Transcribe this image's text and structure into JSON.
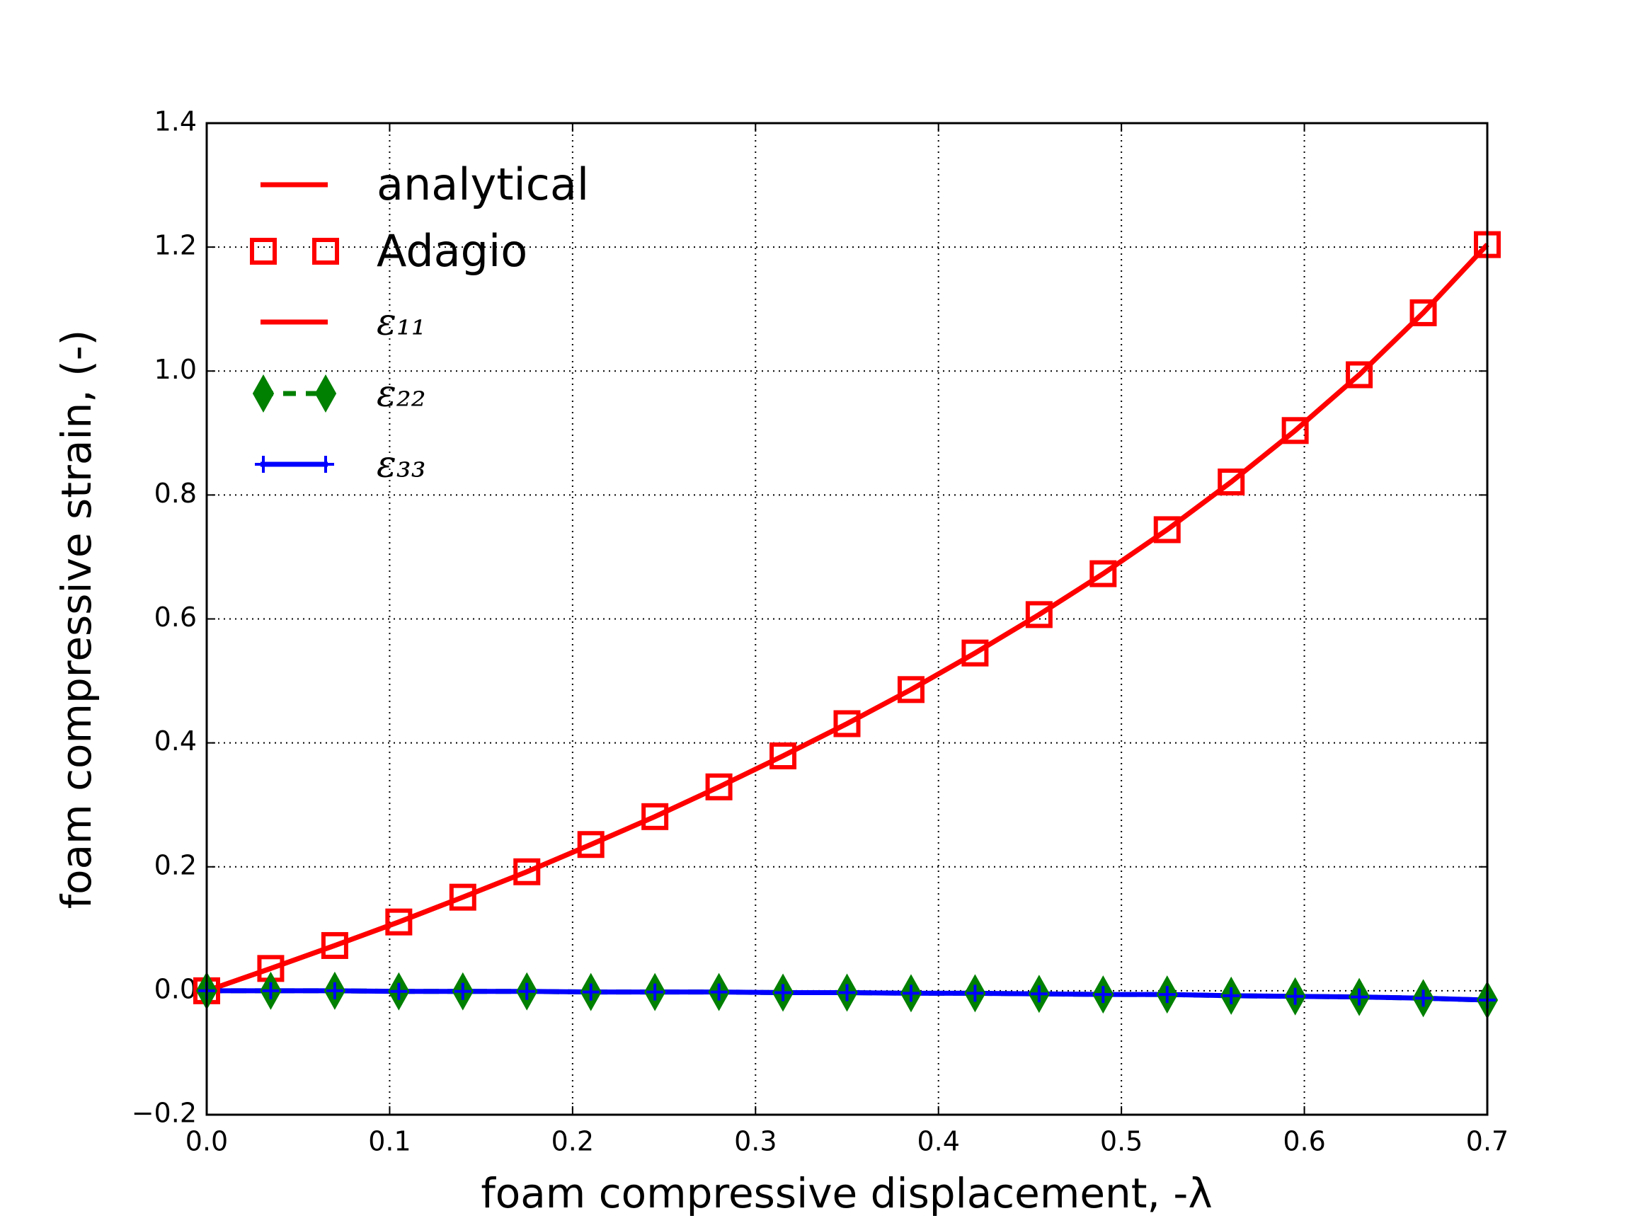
{
  "chart_data": {
    "type": "line",
    "xlabel": "foam compressive displacement, -λ",
    "ylabel": "foam compressive strain, (-)",
    "x": [
      0,
      0.035,
      0.07,
      0.105,
      0.14,
      0.175,
      0.21,
      0.245,
      0.28,
      0.315,
      0.35,
      0.385,
      0.42,
      0.455,
      0.49,
      0.525,
      0.56,
      0.595,
      0.63,
      0.665,
      0.7
    ],
    "series": [
      {
        "name": "analytical",
        "color": "#ff0000",
        "line": "solid",
        "marker": "none",
        "values": [
          0,
          0.036,
          0.073,
          0.111,
          0.151,
          0.192,
          0.236,
          0.281,
          0.329,
          0.379,
          0.431,
          0.486,
          0.545,
          0.607,
          0.673,
          0.744,
          0.821,
          0.904,
          0.994,
          1.094,
          1.204
        ]
      },
      {
        "name": "Adagio",
        "color": "#ff0000",
        "line": "none",
        "marker": "square",
        "values": [
          0,
          0.036,
          0.073,
          0.111,
          0.151,
          0.192,
          0.236,
          0.281,
          0.329,
          0.379,
          0.431,
          0.486,
          0.545,
          0.607,
          0.673,
          0.744,
          0.821,
          0.904,
          0.994,
          1.094,
          1.204
        ]
      },
      {
        "name": "ε₁₁",
        "color": "#ff0000",
        "line": "solid",
        "marker": "none",
        "values": [
          0,
          0.036,
          0.073,
          0.111,
          0.151,
          0.192,
          0.236,
          0.281,
          0.329,
          0.379,
          0.431,
          0.486,
          0.545,
          0.607,
          0.673,
          0.744,
          0.821,
          0.904,
          0.994,
          1.094,
          1.204
        ]
      },
      {
        "name": "ε₂₂",
        "color": "#008000",
        "line": "dashed",
        "marker": "diamond",
        "values": [
          0,
          0,
          0,
          -0.001,
          -0.001,
          -0.001,
          -0.002,
          -0.002,
          -0.002,
          -0.003,
          -0.003,
          -0.004,
          -0.004,
          -0.005,
          -0.006,
          -0.006,
          -0.008,
          -0.009,
          -0.01,
          -0.012,
          -0.015
        ]
      },
      {
        "name": "ε₃₃",
        "color": "#0000ff",
        "line": "solid",
        "marker": "plus",
        "values": [
          0,
          0,
          0,
          -0.001,
          -0.001,
          -0.001,
          -0.002,
          -0.002,
          -0.002,
          -0.003,
          -0.003,
          -0.004,
          -0.004,
          -0.005,
          -0.006,
          -0.006,
          -0.008,
          -0.009,
          -0.01,
          -0.012,
          -0.015
        ]
      }
    ],
    "xlim": [
      0,
      0.7
    ],
    "xticks": [
      {
        "value": 0,
        "label": "0.0"
      },
      0.1,
      0.2,
      0.3,
      0.4,
      0.5,
      0.6,
      0.7
    ],
    "ylim": [
      -0.2,
      1.4
    ],
    "yticks": [
      {
        "value": -0.2,
        "label": "−0.2"
      },
      {
        "value": 0,
        "label": "0.0"
      },
      0.2,
      0.4,
      0.6,
      0.8,
      {
        "value": 1,
        "label": "1.0"
      },
      1.2,
      1.4
    ],
    "grid": true,
    "legend": "upper left"
  }
}
